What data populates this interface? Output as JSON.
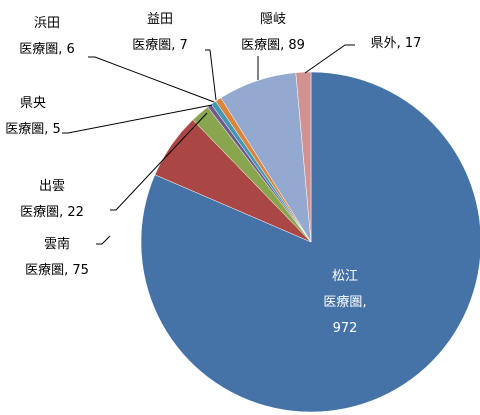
{
  "chart_data": {
    "type": "pie",
    "categories": [
      "松江\n医療圏",
      "雲南\n医療圏",
      "出雲\n医療圏",
      "県央\n医療圏",
      "浜田\n医療圏",
      "益田\n医療圏",
      "隠岐\n医療圏",
      "県外"
    ],
    "values": [
      972,
      75,
      22,
      5,
      6,
      7,
      89,
      17
    ],
    "colors": [
      "#4572a7",
      "#aa4643",
      "#89a54e",
      "#71588f",
      "#4198af",
      "#db843d",
      "#93a9cf",
      "#d19392"
    ]
  }
}
